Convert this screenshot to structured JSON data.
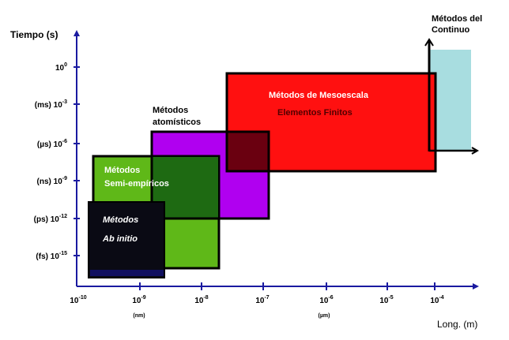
{
  "diagram": {
    "y_axis_label": "Tiempo (s)",
    "x_axis_label": "Long. (m)",
    "y_ticks": [
      {
        "prefix": "(fs) 10",
        "exp": "-15"
      },
      {
        "prefix": "(ps) 10",
        "exp": "-12"
      },
      {
        "prefix": "(ns) 10",
        "exp": "-9"
      },
      {
        "prefix": "(µs) 10",
        "exp": "-6"
      },
      {
        "prefix": "(ms) 10",
        "exp": "-3"
      },
      {
        "prefix": "10",
        "exp": "0"
      }
    ],
    "x_ticks": [
      {
        "base": "10",
        "exp": "-10",
        "unit": ""
      },
      {
        "base": "10",
        "exp": "-9",
        "unit": "(nm)"
      },
      {
        "base": "10",
        "exp": "-8",
        "unit": ""
      },
      {
        "base": "10",
        "exp": "-7",
        "unit": ""
      },
      {
        "base": "10",
        "exp": "-6",
        "unit": "(µm)"
      },
      {
        "base": "10",
        "exp": "-5",
        "unit": ""
      },
      {
        "base": "10",
        "exp": "-4",
        "unit": ""
      }
    ],
    "regions": [
      {
        "name": "Métodos del Continuo",
        "lines": [
          "Métodos del",
          "Continuo"
        ],
        "color": "#a8dde0"
      },
      {
        "name": "Métodos de Mesoescala",
        "lines": [
          "Métodos de Mesoescala",
          "Elementos Finitos"
        ],
        "color": "#ff1010"
      },
      {
        "name": "Métodos atomísticos",
        "lines": [
          "Métodos",
          "atomísticos"
        ],
        "color": "#b000f0"
      },
      {
        "name": "Métodos Semi-empíricos",
        "lines": [
          "Métodos",
          "Semi-empíricos"
        ],
        "color": "#5fb818"
      },
      {
        "name": "Métodos Ab initio",
        "lines": [
          "Métodos",
          "Ab initio"
        ],
        "color": "#0a0a14"
      }
    ]
  }
}
